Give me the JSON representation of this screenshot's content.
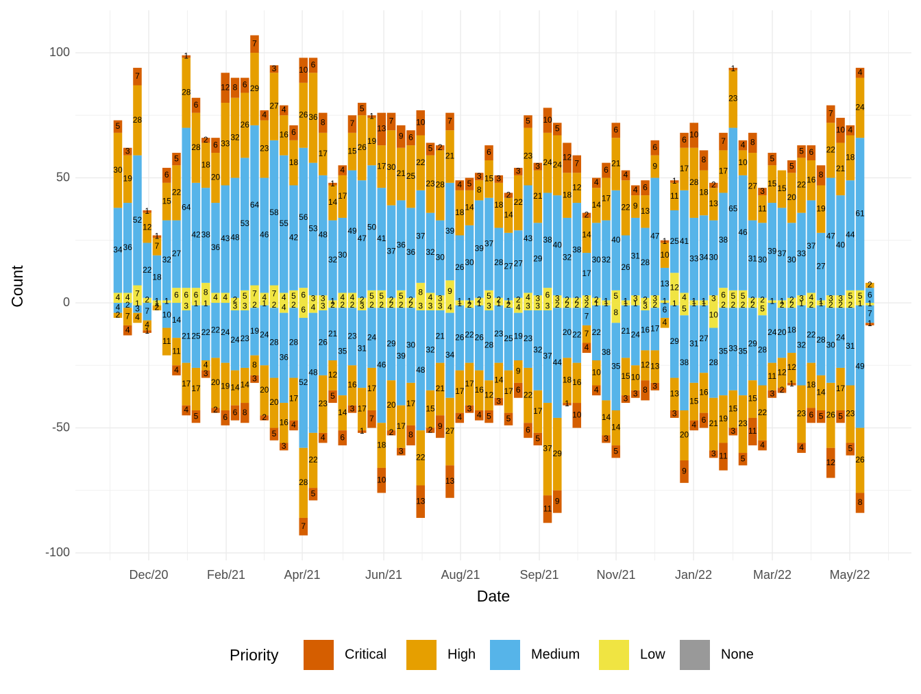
{
  "chart_data": {
    "type": "bar",
    "stacked": true,
    "x_label": "Date",
    "y_label": "Count",
    "legend_title": "Priority",
    "legend_position": "bottom",
    "grid": true,
    "categories": [
      null,
      null,
      null,
      null,
      null,
      null,
      null,
      null,
      null,
      null,
      null,
      null,
      null,
      null,
      null,
      null,
      null,
      null,
      null,
      null,
      null,
      null,
      null,
      null,
      null,
      null,
      null,
      null,
      null,
      null,
      null,
      null,
      null,
      null,
      null,
      null,
      null,
      null,
      null,
      null,
      null,
      null,
      null,
      null,
      null,
      null,
      null,
      null,
      null,
      null,
      null,
      null,
      null,
      null,
      null,
      null,
      null,
      null,
      null,
      null,
      null,
      null,
      null,
      null,
      null,
      null,
      null,
      null,
      null,
      null,
      null,
      null,
      null,
      null,
      null,
      null,
      null,
      null
    ],
    "xlim": [
      -4.35,
      81.26
    ],
    "xticks": [
      {
        "value": 3.16,
        "label": "Dec/20"
      },
      {
        "value": 11.09,
        "label": "Feb/21"
      },
      {
        "value": 18.88,
        "label": "Apr/21"
      },
      {
        "value": 27.23,
        "label": "Jun/21"
      },
      {
        "value": 35.09,
        "label": "Aug/21"
      },
      {
        "value": 43.16,
        "label": "Sep/21"
      },
      {
        "value": 51.02,
        "label": "Nov/21"
      },
      {
        "value": 58.95,
        "label": "Jan/22"
      },
      {
        "value": 67.02,
        "label": "Mar/22"
      },
      {
        "value": 74.95,
        "label": "May/22"
      }
    ],
    "ylim": [
      -103,
      117
    ],
    "yticks": [
      -100,
      -50,
      0,
      50,
      100
    ],
    "minor_yticks": [
      -75,
      -25,
      25,
      75
    ],
    "series": [
      {
        "name": "Critical",
        "color": "#d55e00",
        "values": [
          5,
          3,
          7,
          1,
          1,
          6,
          5,
          1,
          6,
          2,
          6,
          12,
          8,
          6,
          7,
          4,
          3,
          4,
          6,
          10,
          6,
          8,
          1,
          4,
          7,
          5,
          1,
          13,
          7,
          9,
          6,
          10,
          5,
          2,
          7,
          4,
          5,
          3,
          6,
          3,
          2,
          3,
          5,
          3,
          10,
          5,
          12,
          7,
          2,
          4,
          6,
          6,
          4,
          4,
          6,
          6,
          1,
          1,
          6,
          10,
          8,
          2,
          7,
          1,
          4,
          8,
          3,
          5,
          null,
          5,
          5,
          6,
          8,
          7,
          10,
          4,
          4,
          null
        ],
        "negative_values": [
          null,
          -4,
          null,
          -1,
          null,
          null,
          -4,
          -4,
          -5,
          -3,
          -2,
          -6,
          -6,
          -8,
          -3,
          -2,
          -5,
          -3,
          -4,
          -7,
          -5,
          -4,
          -5,
          -6,
          -3,
          -1,
          -7,
          -10,
          -2,
          -3,
          -8,
          -13,
          -2,
          -9,
          -13,
          -4,
          -3,
          -4,
          -5,
          -3,
          -5,
          -6,
          -6,
          -5,
          -11,
          -9,
          -1,
          -10,
          -4,
          -4,
          -3,
          -5,
          -3,
          -3,
          -8,
          -3,
          null,
          -3,
          -9,
          -4,
          -6,
          -3,
          -11,
          -3,
          -5,
          -11,
          -4,
          -3,
          -2,
          -1,
          -4,
          -6,
          -5,
          -12,
          -5,
          -5,
          -8,
          -1
        ],
        "negative_value_labels": [
          null,
          "4",
          null,
          "1",
          null,
          null,
          "4",
          "4",
          "5",
          "3",
          "2",
          "6",
          "6",
          "8",
          "3",
          "2",
          "5",
          "3",
          "4",
          "7",
          "5",
          "4",
          "5",
          "6",
          "3",
          "1",
          "7",
          "10",
          "2",
          "3",
          "8",
          "13",
          "2",
          "9",
          "13",
          "4",
          "3",
          "4",
          "5",
          "3",
          "5",
          "6",
          "6",
          "5",
          "11",
          "9",
          "1",
          "10",
          "4",
          "4",
          "3",
          "5",
          "3",
          "3",
          "8",
          "3",
          null,
          "3",
          "9",
          "4",
          "6",
          "3",
          "11",
          "3",
          "5",
          "11",
          "4",
          "3",
          "2",
          "1",
          "4",
          "6",
          "5",
          "12",
          "5",
          "5",
          "8",
          "1"
        ]
      },
      {
        "name": "High",
        "color": "#e69f00",
        "values": [
          30,
          19,
          28,
          12,
          7,
          15,
          22,
          28,
          28,
          18,
          20,
          33,
          32,
          26,
          29,
          23,
          27,
          16,
          18,
          26,
          36,
          17,
          14,
          17,
          15,
          26,
          19,
          17,
          30,
          21,
          25,
          22,
          23,
          28,
          21,
          18,
          14,
          8,
          15,
          18,
          14,
          22,
          23,
          21,
          24,
          24,
          18,
          12,
          14,
          14,
          17,
          21,
          22,
          9,
          13,
          9,
          10,
          11,
          17,
          28,
          18,
          13,
          17,
          23,
          10,
          27,
          11,
          15,
          15,
          20,
          22,
          16,
          19,
          22,
          21,
          18,
          24,
          2
        ],
        "negative_values": [
          -2,
          -7,
          -4,
          -4,
          -2,
          -11,
          -11,
          -17,
          -17,
          -4,
          -20,
          -19,
          -14,
          -14,
          -8,
          -20,
          -20,
          -16,
          -17,
          -28,
          -22,
          -23,
          -12,
          -14,
          -16,
          -17,
          -17,
          -18,
          -20,
          -17,
          -17,
          -22,
          -15,
          -21,
          -27,
          -17,
          -17,
          -16,
          -12,
          -14,
          -17,
          -9,
          -22,
          -17,
          -37,
          -29,
          -18,
          -16,
          -7,
          -10,
          -14,
          -14,
          -15,
          -10,
          -12,
          -13,
          -4,
          -13,
          -20,
          -15,
          -16,
          -21,
          -19,
          -15,
          -23,
          -15,
          -22,
          -11,
          -12,
          -12,
          -23,
          -18,
          -14,
          -26,
          -17,
          -23,
          -26,
          null
        ],
        "negative_value_labels": [
          "2",
          "7",
          "4",
          "4",
          "2",
          "11",
          "11",
          "17",
          "17",
          "4",
          "20",
          "19",
          "14",
          "14",
          "8",
          "20",
          "20",
          "16",
          "17",
          "28",
          "22",
          "23",
          "12",
          "14",
          "16",
          "17",
          "17",
          "18",
          "20",
          "17",
          "17",
          "22",
          "15",
          "21",
          "27",
          "17",
          "17",
          "16",
          "12",
          "14",
          "17",
          "9",
          "22",
          "17",
          "37",
          "29",
          "18",
          "16",
          "7",
          "10",
          "14",
          "14",
          "15",
          "10",
          "12",
          "13",
          "4",
          "13",
          "20",
          "15",
          "16",
          "21",
          "19",
          "15",
          "23",
          "15",
          "22",
          "11",
          "12",
          "12",
          "23",
          "18",
          "14",
          "26",
          "17",
          "23",
          "26",
          null
        ]
      },
      {
        "name": "Medium",
        "color": "#56b4e9",
        "values": [
          34,
          36,
          52,
          22,
          18,
          32,
          27,
          64,
          42,
          38,
          36,
          43,
          48,
          53,
          64,
          46,
          58,
          55,
          42,
          56,
          53,
          48,
          32,
          30,
          49,
          47,
          50,
          41,
          37,
          36,
          36,
          37,
          32,
          30,
          39,
          26,
          30,
          39,
          37,
          28,
          27,
          27,
          43,
          29,
          38,
          40,
          32,
          38,
          17,
          30,
          32,
          40,
          26,
          31,
          28,
          47,
          13,
          25,
          41,
          33,
          34,
          30,
          38,
          65,
          46,
          31,
          30,
          39,
          37,
          30,
          33,
          37,
          27,
          47,
          40,
          44,
          61,
          6
        ],
        "negative_values": [
          -4,
          -2,
          -3,
          -7,
          null,
          -10,
          -14,
          -21,
          -25,
          -22,
          -22,
          -24,
          -24,
          -23,
          -19,
          -24,
          -28,
          -36,
          -28,
          -52,
          -48,
          -26,
          -21,
          -35,
          -23,
          -31,
          -24,
          -46,
          -29,
          -39,
          -30,
          -48,
          -32,
          -21,
          -34,
          -26,
          -22,
          -26,
          -28,
          -23,
          -25,
          -19,
          -23,
          -32,
          -37,
          -44,
          -20,
          -22,
          -7,
          -22,
          -38,
          -35,
          -21,
          -24,
          -16,
          -17,
          -6,
          -29,
          -38,
          -31,
          -27,
          -28,
          -35,
          -33,
          -35,
          -29,
          -28,
          -24,
          -20,
          -18,
          -32,
          -22,
          -28,
          -30,
          -24,
          -31,
          -49,
          -7
        ],
        "negative_value_labels": [
          "4",
          "2",
          "3",
          "7",
          null,
          "10",
          "14",
          "21",
          "25",
          "22",
          "22",
          "24",
          "24",
          "23",
          "19",
          "24",
          "28",
          "36",
          "28",
          "52",
          "48",
          "26",
          "21",
          "35",
          "23",
          "31",
          "24",
          "46",
          "29",
          "39",
          "30",
          "48",
          "32",
          "21",
          "34",
          "26",
          "22",
          "26",
          "28",
          "23",
          "25",
          "19",
          "23",
          "32",
          "37",
          "44",
          "20",
          "22",
          "7",
          "22",
          "38",
          "35",
          "21",
          "24",
          "16",
          "17",
          "6",
          "29",
          "38",
          "31",
          "27",
          "28",
          "35",
          "33",
          "35",
          "29",
          "28",
          "24",
          "20",
          "18",
          "32",
          "22",
          "28",
          "30",
          "24",
          "31",
          "49",
          "7"
        ]
      },
      {
        "name": "Low",
        "color": "#f0e442",
        "values": [
          4,
          4,
          7,
          2,
          1,
          1,
          6,
          6,
          6,
          8,
          4,
          4,
          2,
          5,
          7,
          4,
          7,
          4,
          5,
          6,
          3,
          3,
          1,
          4,
          4,
          2,
          5,
          5,
          2,
          5,
          2,
          8,
          4,
          3,
          9,
          1,
          1,
          2,
          5,
          2,
          1,
          2,
          4,
          3,
          6,
          3,
          2,
          2,
          3,
          2,
          1,
          5,
          1,
          3,
          2,
          3,
          1,
          12,
          4,
          1,
          1,
          3,
          6,
          5,
          5,
          2,
          2,
          1,
          1,
          2,
          3,
          4,
          1,
          3,
          3,
          5,
          5,
          null
        ],
        "negative_values": [
          null,
          null,
          -1,
          null,
          -1,
          null,
          null,
          -3,
          -1,
          -1,
          null,
          null,
          -3,
          -3,
          -2,
          -1,
          -2,
          -4,
          -2,
          -6,
          -4,
          -3,
          -2,
          -2,
          -2,
          -3,
          -2,
          -2,
          -2,
          -2,
          -2,
          -3,
          -3,
          -3,
          -4,
          -1,
          -2,
          -1,
          -3,
          -1,
          -2,
          -4,
          -3,
          -3,
          -3,
          -2,
          -2,
          -2,
          -2,
          -1,
          -1,
          -8,
          -1,
          -1,
          -3,
          -2,
          null,
          -1,
          -5,
          -1,
          -1,
          -10,
          -2,
          -2,
          -2,
          -2,
          -5,
          null,
          -2,
          -2,
          -1,
          -2,
          -1,
          -2,
          -2,
          -2,
          -1,
          -1
        ],
        "negative_value_labels": [
          null,
          null,
          "1",
          null,
          "1",
          null,
          null,
          "3",
          "1",
          "1",
          null,
          null,
          "3",
          "3",
          "2",
          "1",
          "2",
          "4",
          "2",
          "6",
          "4",
          "3",
          "2",
          "2",
          "2",
          "3",
          "2",
          "2",
          "2",
          "2",
          "2",
          "3",
          "3",
          "3",
          "4",
          "1",
          "2",
          "1",
          "3",
          "1",
          "2",
          "4",
          "3",
          "3",
          "3",
          "2",
          "2",
          "2",
          "2",
          "1",
          "1",
          "8",
          "1",
          "1",
          "3",
          "2",
          null,
          "1",
          "5",
          "1",
          "1",
          "10",
          "2",
          "2",
          "2",
          "2",
          "5",
          null,
          "2",
          "2",
          "1",
          "2",
          "1",
          "2",
          "2",
          "2",
          "1",
          "1"
        ]
      },
      {
        "name": "None",
        "color": "#999999",
        "values": [
          null,
          null,
          null,
          null,
          null,
          null,
          null,
          null,
          null,
          null,
          null,
          null,
          null,
          null,
          null,
          null,
          null,
          null,
          null,
          null,
          null,
          null,
          null,
          null,
          null,
          null,
          null,
          null,
          null,
          null,
          null,
          null,
          null,
          null,
          null,
          null,
          null,
          null,
          null,
          null,
          null,
          null,
          null,
          null,
          null,
          null,
          null,
          null,
          null,
          null,
          null,
          null,
          null,
          null,
          null,
          null,
          null,
          null,
          null,
          null,
          null,
          null,
          null,
          null,
          null,
          null,
          null,
          null,
          null,
          null,
          null,
          null,
          null,
          null,
          null,
          null,
          null,
          null
        ]
      }
    ]
  }
}
